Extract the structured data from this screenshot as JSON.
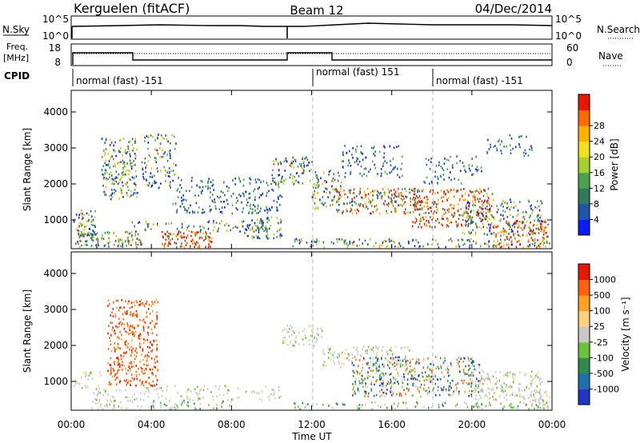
{
  "header": {
    "station": "Kerguelen (fitACF)",
    "beam": "Beam 12",
    "date": "04/Dec/2014"
  },
  "nsky_panel": {
    "left_label": "N.Sky",
    "y_ticks": [
      "10^5",
      "10^0"
    ],
    "right_label": "N.Search",
    "right_ticks": [
      "10^5",
      "10^0"
    ]
  },
  "freq_panel": {
    "left_label_line1": "Freq.",
    "left_label_line2": "[MHz]",
    "y_ticks": [
      "18",
      "8"
    ],
    "right_label": "Nave",
    "right_ticks": [
      "60",
      "0"
    ]
  },
  "cpid": {
    "label": "CPID",
    "segments": [
      {
        "label": "normal (fast) -151",
        "start_hour": 0
      },
      {
        "label": "normal (fast) 151",
        "start_hour": 12
      },
      {
        "label": "normal (fast) -151",
        "start_hour": 18
      }
    ]
  },
  "chart_data": [
    {
      "type": "heatmap",
      "name": "power",
      "ylabel": "Slant Range [km]",
      "y_ticks": [
        "1000",
        "2000",
        "3000",
        "4000"
      ],
      "ylim": [
        200,
        4600
      ],
      "xlim": [
        0,
        24
      ],
      "colorbar_label": "Power [dB]",
      "colorbar_ticks": [
        "4",
        "8",
        "12",
        "16",
        "20",
        "24",
        "28"
      ],
      "colorbar_colors": [
        "#0a1cff",
        "#1f55a8",
        "#2f7a5a",
        "#4aa34c",
        "#a8d02a",
        "#f0e020",
        "#ffb000",
        "#ff6a00",
        "#e81800"
      ]
    },
    {
      "type": "heatmap",
      "name": "velocity",
      "ylabel": "Slant Range [km]",
      "y_ticks": [
        "1000",
        "2000",
        "3000",
        "4000"
      ],
      "ylim": [
        200,
        4600
      ],
      "xlim": [
        0,
        24
      ],
      "colorbar_label": "Velocity [m s⁻¹]",
      "colorbar_ticks": [
        "1000",
        "500",
        "100",
        "25",
        "-25",
        "-100",
        "-500",
        "-1000"
      ],
      "colorbar_colors": [
        "#2036c8",
        "#1f6fb0",
        "#2f8a4c",
        "#6ac23a",
        "#c8c8c8",
        "#ffd080",
        "#ffa020",
        "#ff6010",
        "#e81800"
      ]
    }
  ],
  "x_axis": {
    "tick_labels": [
      "00:00",
      "04:00",
      "08:00",
      "12:00",
      "16:00",
      "20:00",
      "00:00"
    ],
    "label": "Time UT"
  }
}
